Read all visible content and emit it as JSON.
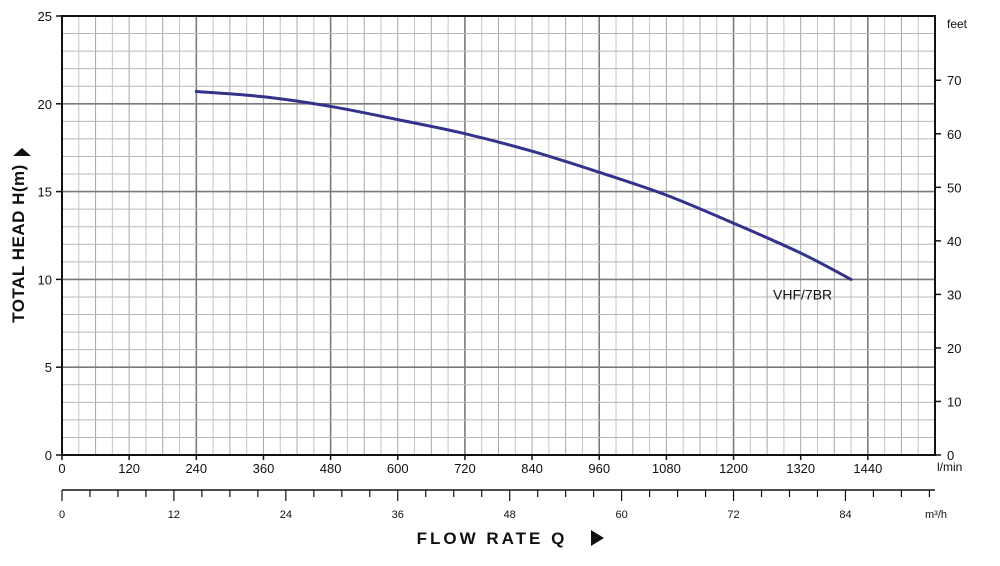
{
  "chart_data": {
    "type": "line",
    "ylabel": "TOTAL HEAD H(m)",
    "xlabel": "FLOW RATE Q",
    "grid": true,
    "x_primary": {
      "unit": "l/min",
      "range": [
        0,
        1560
      ],
      "ticks": [
        0,
        120,
        240,
        360,
        480,
        600,
        720,
        840,
        960,
        1080,
        1200,
        1320,
        1440
      ]
    },
    "x_secondary": {
      "unit": "m³/h",
      "range": [
        0,
        93.6
      ],
      "ticks": [
        0,
        12,
        24,
        36,
        48,
        60,
        72,
        84
      ]
    },
    "y_primary": {
      "unit": "m",
      "range": [
        0,
        25
      ],
      "ticks": [
        0,
        5,
        10,
        15,
        20,
        25
      ]
    },
    "y_secondary": {
      "unit": "feet",
      "range": [
        0,
        82
      ],
      "ticks": [
        0,
        10,
        20,
        30,
        40,
        50,
        60,
        70
      ]
    },
    "series": [
      {
        "name": "VHF/7BR",
        "color": "#33338c",
        "x": [
          240,
          360,
          480,
          600,
          720,
          840,
          960,
          1080,
          1200,
          1320,
          1410
        ],
        "y": [
          20.7,
          20.4,
          19.85,
          19.1,
          18.3,
          17.3,
          16.1,
          14.8,
          13.2,
          11.5,
          10.0
        ]
      }
    ]
  }
}
